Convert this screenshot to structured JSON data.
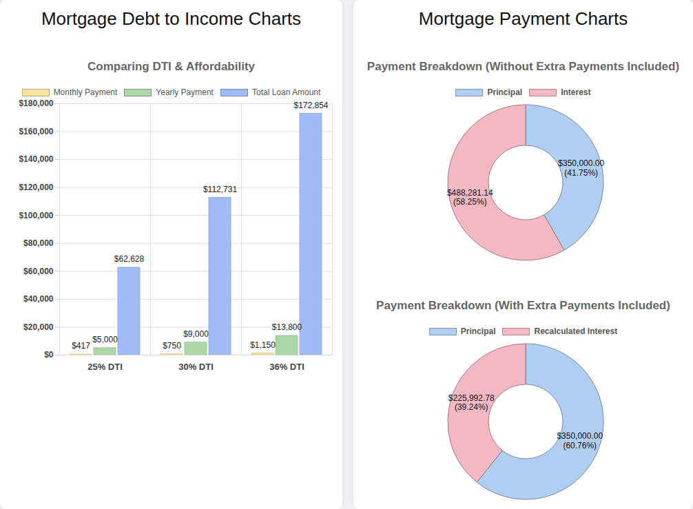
{
  "headings": [
    "Mortgage Debt to Income Charts",
    "Mortgage Payment Charts"
  ],
  "chart_data": [
    {
      "type": "bar",
      "title": "Comparing DTI & Affordability",
      "categories": [
        "25% DTI",
        "30% DTI",
        "36% DTI"
      ],
      "series": [
        {
          "name": "Monthly Payment",
          "color": "#fbe3a0",
          "values": [
            417,
            750,
            1150
          ],
          "value_labels": [
            "$417",
            "$750",
            "$1,150"
          ]
        },
        {
          "name": "Yearly Payment",
          "color": "#acd7a6",
          "values": [
            5000,
            9000,
            13800
          ],
          "value_labels": [
            "$5,000",
            "$9,000",
            "$13,800"
          ]
        },
        {
          "name": "Total Loan Amount",
          "color": "#a0bbf7",
          "values": [
            62628,
            112731,
            172854
          ],
          "value_labels": [
            "$62,628",
            "$112,731",
            "$172,854"
          ]
        }
      ],
      "ylim": [
        0,
        180000
      ],
      "yticks": [
        {
          "value": 0,
          "label": "$0"
        },
        {
          "value": 20000,
          "label": "$20,000"
        },
        {
          "value": 40000,
          "label": "$40,000"
        },
        {
          "value": 60000,
          "label": "$60,000"
        },
        {
          "value": 80000,
          "label": "$80,000"
        },
        {
          "value": 100000,
          "label": "$100,000"
        },
        {
          "value": 120000,
          "label": "$120,000"
        },
        {
          "value": 140000,
          "label": "$140,000"
        },
        {
          "value": 160000,
          "label": "$160,000"
        },
        {
          "value": 180000,
          "label": "$180,000"
        }
      ],
      "grid": true,
      "legend": "top",
      "data_labels": true
    },
    {
      "type": "donut",
      "title": "Payment Breakdown (Without Extra Payments Included)",
      "categories": [
        "Principal",
        "Interest"
      ],
      "values": [
        350000,
        488281.14
      ],
      "value_labels": [
        "$350,000.00\n(41.75%)",
        "$488,281.14\n(58.25%)"
      ],
      "colors": [
        "#b0cef2",
        "#f4b8c3"
      ],
      "legend": "top",
      "data_labels": true
    },
    {
      "type": "donut",
      "title": "Payment Breakdown (With Extra Payments Included)",
      "categories": [
        "Principal",
        "Recalculated Interest"
      ],
      "values": [
        350000,
        225992.78
      ],
      "value_labels": [
        "$350,000.00\n(60.76%)",
        "$225,992.78\n(39.24%)"
      ],
      "colors": [
        "#b0cef2",
        "#f4b8c3"
      ],
      "legend": "top",
      "data_labels": true
    }
  ]
}
